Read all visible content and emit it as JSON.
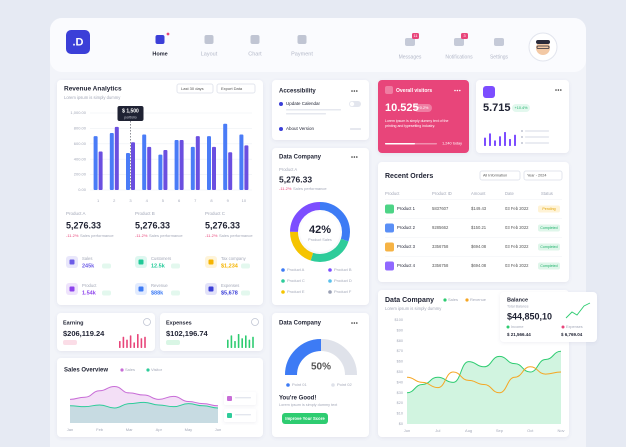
{
  "nav": {
    "logo": ".D",
    "items": [
      "Home",
      "Layout",
      "Chart",
      "Payment"
    ],
    "tools": [
      "Messages",
      "Notifications",
      "Settings"
    ],
    "badges": [
      "11",
      "3"
    ]
  },
  "revenue": {
    "title": "Revenue Analytics",
    "subtitle": "Lorem ipsum is simply dummy",
    "filter": "Last 30 days",
    "export": "Export Data",
    "tooltip": [
      "$ 1,500",
      "portfolio"
    ],
    "chart": {
      "type": "bar",
      "categories": [
        "1",
        "2",
        "3",
        "4",
        "5",
        "6",
        "7",
        "8",
        "9",
        "10"
      ],
      "ylim": [
        0,
        1000
      ],
      "yticks": [
        {
          "value": 0,
          "label": "0.00"
        },
        {
          "value": 200,
          "label": "200.00"
        },
        {
          "value": 400,
          "label": "400.00"
        },
        {
          "value": 600,
          "label": "600.00"
        },
        {
          "value": 800,
          "label": "800.00"
        },
        {
          "value": 1000,
          "label": "1,000.00"
        }
      ],
      "grid": true,
      "series": [
        {
          "color": "#4a7cf7",
          "values": [
            700,
            740,
            480,
            720,
            460,
            650,
            560,
            700,
            860,
            720
          ]
        },
        {
          "color": "#6b4fe0",
          "values": [
            500,
            820,
            620,
            560,
            520,
            650,
            700,
            560,
            490,
            580
          ]
        }
      ]
    }
  },
  "products": [
    {
      "name": "Product A",
      "value": "5,276.33",
      "change": "-11.2%",
      "note": "Sales performance"
    },
    {
      "name": "Product B",
      "value": "5,276.33",
      "change": "-11.2%",
      "note": "Sales performance"
    },
    {
      "name": "Product C",
      "value": "5,276.33",
      "change": "-11.2%",
      "note": "Sales performance"
    }
  ],
  "stats": [
    {
      "label": "Sales",
      "value": "245k",
      "color": "#6c5ce7"
    },
    {
      "label": "Customers",
      "value": "12.5k",
      "color": "#20c997"
    },
    {
      "label": "Tax company",
      "value": "$1,234",
      "color": "#f5b400"
    },
    {
      "label": "Product",
      "value": "1.54k",
      "color": "#8e44ec"
    },
    {
      "label": "Revenue",
      "value": "$88k",
      "color": "#3d7bf5"
    },
    {
      "label": "Expenses",
      "value": "$5,678",
      "color": "#3b3fd8"
    }
  ],
  "earning": {
    "title": "Earning",
    "value": "$206,119.24",
    "color": "#e8457a",
    "bars": [
      5,
      8,
      6,
      9,
      4,
      10,
      7,
      8
    ],
    "ylim": [
      0,
      10
    ]
  },
  "expenses": {
    "title": "Expenses",
    "value": "$102,196.74",
    "color": "#2ecc71",
    "bars": [
      6,
      9,
      5,
      10,
      7,
      9,
      6,
      8
    ],
    "ylim": [
      0,
      10
    ]
  },
  "sales_overview": {
    "title": "Sales Overview",
    "chart": {
      "type": "area",
      "categories": [
        "Jan",
        null,
        "Feb",
        null,
        "Mar",
        null,
        "Apr",
        null,
        "May",
        null,
        "Jun"
      ],
      "ylim": [
        0,
        100
      ],
      "series": [
        {
          "name": "Sales",
          "color": "#c86dd7",
          "area": true,
          "values": [
            55,
            60,
            75,
            85,
            70,
            65,
            55,
            62,
            50,
            45,
            40
          ]
        },
        {
          "name": "Visitor",
          "color": "#2ecc9a",
          "area": true,
          "values": [
            40,
            38,
            42,
            35,
            45,
            48,
            42,
            38,
            45,
            40,
            35
          ]
        }
      ]
    }
  },
  "accessibility": {
    "title": "Accessibility",
    "items": [
      "Update Calendar",
      "About Version"
    ]
  },
  "donut_card": {
    "title": "Data Company",
    "product": "Product A",
    "value": "5,276.33",
    "change": "-11.2%",
    "note": "Sales performance",
    "donut": {
      "values": [
        30,
        25,
        20,
        25
      ],
      "colors": [
        "#3d7bf5",
        "#2ecc9a",
        "#f5c400",
        "#7c4dff"
      ],
      "center": "42%",
      "caption": "Product Sales"
    },
    "legend": [
      "Product A",
      "Product B",
      "Product C",
      "Product D",
      "Product E",
      "Product F"
    ],
    "legend_colors": [
      "#3d7bf5",
      "#7c4dff",
      "#2ecc9a",
      "#5bc0eb",
      "#f5c400",
      "#9aa0b4"
    ]
  },
  "gauge_card": {
    "title": "Data Company",
    "gauge": {
      "value": 50,
      "label": "50%",
      "ylim": [
        0,
        100
      ],
      "colors": [
        "#3d7bf5",
        "#dfe2ea"
      ]
    },
    "legend": [
      "Point 01",
      "Point 02"
    ],
    "message": "You're Good!",
    "note": "Lorem ipsum is simply dummy text",
    "button": "Improve Your Score"
  },
  "visitors": {
    "title": "Overall visitors",
    "value": "10.525",
    "change": "+0.2%",
    "note": [
      "Lorem ipsum is simply dummy text of the",
      "printing and typesetting industry."
    ],
    "today": "1,240 today"
  },
  "card2": {
    "value": "5.715",
    "change": "+10.4%",
    "color": "#7c4dff",
    "bars": [
      6,
      9,
      4,
      7,
      10,
      5,
      8
    ],
    "ylim": [
      0,
      10
    ]
  },
  "orders": {
    "title": "Recent Orders",
    "filters": [
      "All Information",
      "Year - 2024"
    ],
    "header": [
      "Product",
      "Product ID",
      "Amount",
      "Date",
      "Status"
    ],
    "rows": [
      {
        "cells": [
          "Product 1",
          "5837607",
          "$149.43",
          "03 Feb 2022",
          "Pending"
        ],
        "icon_color": "#2ecc71",
        "status_colors": [
          "#fff3d6",
          "#e0a100"
        ]
      },
      {
        "cells": [
          "Product 2",
          "9285662",
          "$150.21",
          "03 Feb 2022",
          "Completed"
        ],
        "icon_color": "#3d7bf5",
        "status_colors": [
          "#dff6ea",
          "#1fb26b"
        ]
      },
      {
        "cells": [
          "Product 3",
          "3356758",
          "$694.08",
          "03 Feb 2022",
          "Completed"
        ],
        "icon_color": "#f5a623",
        "status_colors": [
          "#dff6ea",
          "#1fb26b"
        ]
      },
      {
        "cells": [
          "Product 4",
          "3356758",
          "$694.08",
          "03 Feb 2022",
          "Completed"
        ],
        "icon_color": "#7c4dff",
        "status_colors": [
          "#dff6ea",
          "#1fb26b"
        ]
      }
    ]
  },
  "line_card": {
    "title": "Data Company",
    "subtitle": "Lorem ipsum is simply dummy",
    "chart": {
      "type": "line",
      "categories": [
        "Jun",
        null,
        "Jul",
        null,
        "Aug",
        null,
        "Sep",
        null,
        "Oct",
        null,
        "Nov"
      ],
      "ylim": [
        0,
        100
      ],
      "yticks": [
        {
          "value": 0,
          "label": "$0"
        },
        {
          "value": 10,
          "label": "$10"
        },
        {
          "value": 20,
          "label": "$20"
        },
        {
          "value": 30,
          "label": "$30"
        },
        {
          "value": 40,
          "label": "$40"
        },
        {
          "value": 50,
          "label": "$50"
        },
        {
          "value": 60,
          "label": "$60"
        },
        {
          "value": 70,
          "label": "$70"
        },
        {
          "value": 80,
          "label": "$80"
        },
        {
          "value": 90,
          "label": "$90"
        },
        {
          "value": 100,
          "label": "$100"
        }
      ],
      "series": [
        {
          "name": "Sales",
          "color": "#2ecc71",
          "area": true,
          "values": [
            30,
            38,
            45,
            40,
            60,
            55,
            65,
            58,
            50,
            62,
            70
          ]
        },
        {
          "name": "Revenue",
          "color": "#f5a623",
          "area": false,
          "values": [
            45,
            40,
            35,
            50,
            42,
            38,
            30,
            45,
            55,
            48,
            50
          ]
        }
      ]
    }
  },
  "balance": {
    "title": "Balance",
    "subtitle": "Total Balance",
    "value": "$44,850,10",
    "income": {
      "label": "Income",
      "value": "$ 21,566.44"
    },
    "expenses": {
      "label": "Expenses",
      "value": "$ 6,769.04"
    }
  }
}
